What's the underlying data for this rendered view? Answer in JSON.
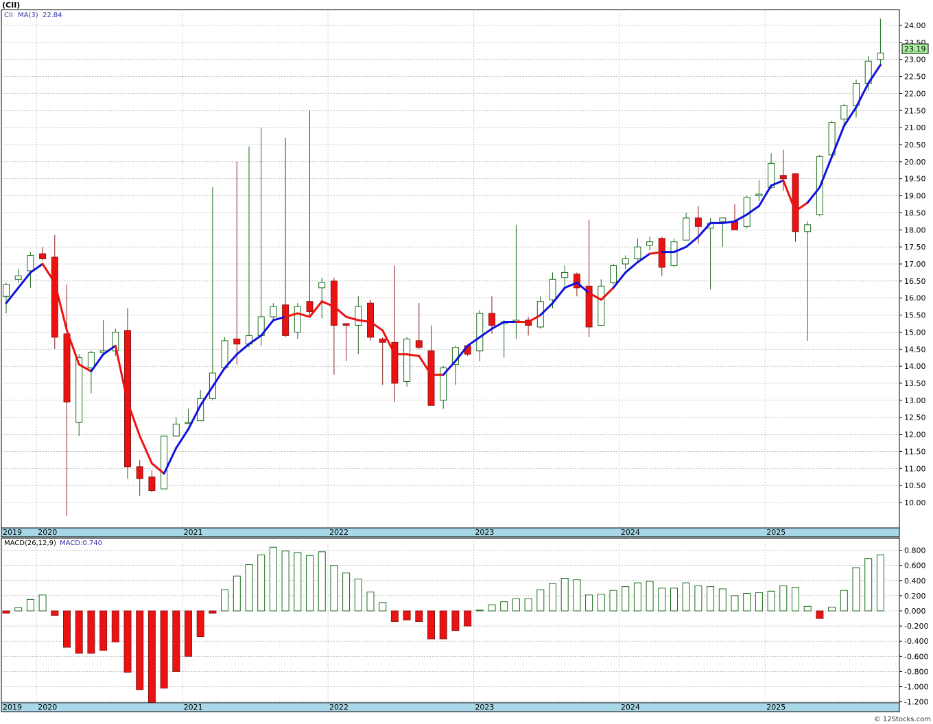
{
  "header": {
    "title": "(CII)",
    "price_legend_symbol": "CII",
    "ma_label": "MA(3)",
    "ma_value": "22.84",
    "macd_label": "MACD(26,12,9)",
    "macd_value_label": "MACD:0.740",
    "last_price": "23.19",
    "footer": "© 12Stocks.com"
  },
  "colors": {
    "up": "#1a6b1a",
    "down": "#ee1111",
    "ma_up": "#1111dd",
    "ma_down": "#ee1111",
    "axis_band": "#a8d8e8",
    "last_price_bg": "#a8f0a0",
    "grid": "#999999"
  },
  "chart_data": [
    {
      "type": "candlestick",
      "title": "(CII)",
      "interval": "monthly",
      "ylim": [
        9.5,
        24.3
      ],
      "yticks": [
        "10.00",
        "10.50",
        "11.00",
        "11.50",
        "12.00",
        "12.50",
        "13.00",
        "13.50",
        "14.00",
        "14.50",
        "15.00",
        "15.50",
        "16.00",
        "16.50",
        "17.00",
        "17.50",
        "18.00",
        "18.50",
        "19.00",
        "19.50",
        "20.00",
        "20.50",
        "21.00",
        "21.50",
        "22.00",
        "22.50",
        "23.00",
        "23.50",
        "24.00"
      ],
      "year_labels": [
        "2019",
        "2020",
        "2021",
        "2022",
        "2023",
        "2024",
        "2025"
      ],
      "year_start_index": [
        0,
        3,
        15,
        27,
        39,
        51,
        63
      ],
      "candles": [
        {
          "o": 16.05,
          "h": 16.45,
          "l": 15.55,
          "c": 16.4
        },
        {
          "o": 16.55,
          "h": 16.85,
          "l": 16.45,
          "c": 16.65
        },
        {
          "o": 16.8,
          "h": 17.35,
          "l": 16.3,
          "c": 17.25
        },
        {
          "o": 17.3,
          "h": 17.5,
          "l": 17.1,
          "c": 17.15
        },
        {
          "o": 17.2,
          "h": 17.85,
          "l": 14.5,
          "c": 14.85
        },
        {
          "o": 14.95,
          "h": 16.4,
          "l": 9.6,
          "c": 12.95
        },
        {
          "o": 12.35,
          "h": 14.35,
          "l": 11.95,
          "c": 14.25
        },
        {
          "o": 13.95,
          "h": 14.45,
          "l": 13.2,
          "c": 14.4
        },
        {
          "o": 14.4,
          "h": 15.35,
          "l": 14.4,
          "c": 14.45
        },
        {
          "o": 14.45,
          "h": 15.1,
          "l": 14.3,
          "c": 15.0
        },
        {
          "o": 15.05,
          "h": 15.7,
          "l": 10.7,
          "c": 11.05
        },
        {
          "o": 11.05,
          "h": 11.25,
          "l": 10.2,
          "c": 10.7
        },
        {
          "o": 10.75,
          "h": 10.95,
          "l": 10.3,
          "c": 10.35
        },
        {
          "o": 10.4,
          "h": 11.95,
          "l": 10.4,
          "c": 11.95
        },
        {
          "o": 11.95,
          "h": 12.5,
          "l": 11.95,
          "c": 12.3
        },
        {
          "o": 12.35,
          "h": 12.75,
          "l": 12.3,
          "c": 12.35
        },
        {
          "o": 12.4,
          "h": 13.3,
          "l": 12.4,
          "c": 13.05
        },
        {
          "o": 13.05,
          "h": 19.25,
          "l": 13.0,
          "c": 13.8
        },
        {
          "o": 13.95,
          "h": 14.85,
          "l": 13.95,
          "c": 14.75
        },
        {
          "o": 14.8,
          "h": 20.0,
          "l": 14.05,
          "c": 14.65
        },
        {
          "o": 14.65,
          "h": 20.45,
          "l": 14.55,
          "c": 14.9
        },
        {
          "o": 14.9,
          "h": 21.0,
          "l": 14.6,
          "c": 15.45
        },
        {
          "o": 15.45,
          "h": 15.85,
          "l": 15.3,
          "c": 15.75
        },
        {
          "o": 15.8,
          "h": 20.7,
          "l": 14.85,
          "c": 14.9
        },
        {
          "o": 15.0,
          "h": 15.85,
          "l": 14.8,
          "c": 15.75
        },
        {
          "o": 15.9,
          "h": 21.5,
          "l": 15.5,
          "c": 15.6
        },
        {
          "o": 16.3,
          "h": 16.6,
          "l": 15.4,
          "c": 16.45
        },
        {
          "o": 16.5,
          "h": 16.6,
          "l": 13.75,
          "c": 15.2
        },
        {
          "o": 15.25,
          "h": 15.25,
          "l": 14.15,
          "c": 15.2
        },
        {
          "o": 15.2,
          "h": 16.05,
          "l": 14.35,
          "c": 15.75
        },
        {
          "o": 15.85,
          "h": 15.95,
          "l": 14.75,
          "c": 14.85
        },
        {
          "o": 14.8,
          "h": 14.85,
          "l": 13.45,
          "c": 14.7
        },
        {
          "o": 14.7,
          "h": 16.95,
          "l": 12.95,
          "c": 13.5
        },
        {
          "o": 13.55,
          "h": 14.85,
          "l": 13.4,
          "c": 14.8
        },
        {
          "o": 14.75,
          "h": 15.85,
          "l": 14.5,
          "c": 14.55
        },
        {
          "o": 14.45,
          "h": 15.2,
          "l": 12.9,
          "c": 12.85
        },
        {
          "o": 13.0,
          "h": 14.0,
          "l": 12.75,
          "c": 13.95
        },
        {
          "o": 14.05,
          "h": 14.6,
          "l": 13.45,
          "c": 14.55
        },
        {
          "o": 14.6,
          "h": 14.6,
          "l": 14.3,
          "c": 14.35
        },
        {
          "o": 14.45,
          "h": 15.65,
          "l": 14.15,
          "c": 15.55
        },
        {
          "o": 15.55,
          "h": 16.05,
          "l": 14.95,
          "c": 15.2
        },
        {
          "o": 15.25,
          "h": 15.35,
          "l": 14.25,
          "c": 15.3
        },
        {
          "o": 15.3,
          "h": 18.15,
          "l": 14.8,
          "c": 15.35
        },
        {
          "o": 15.35,
          "h": 15.45,
          "l": 14.9,
          "c": 15.2
        },
        {
          "o": 15.15,
          "h": 16.05,
          "l": 15.1,
          "c": 15.9
        },
        {
          "o": 15.95,
          "h": 16.75,
          "l": 15.7,
          "c": 16.55
        },
        {
          "o": 16.6,
          "h": 16.95,
          "l": 16.35,
          "c": 16.75
        },
        {
          "o": 16.7,
          "h": 16.75,
          "l": 16.05,
          "c": 16.3
        },
        {
          "o": 16.35,
          "h": 18.3,
          "l": 14.85,
          "c": 15.15
        },
        {
          "o": 15.2,
          "h": 16.55,
          "l": 15.2,
          "c": 16.35
        },
        {
          "o": 16.45,
          "h": 17.0,
          "l": 16.4,
          "c": 16.95
        },
        {
          "o": 17.0,
          "h": 17.25,
          "l": 16.85,
          "c": 17.15
        },
        {
          "o": 17.15,
          "h": 17.75,
          "l": 17.1,
          "c": 17.5
        },
        {
          "o": 17.55,
          "h": 17.8,
          "l": 17.4,
          "c": 17.65
        },
        {
          "o": 17.75,
          "h": 17.8,
          "l": 16.65,
          "c": 16.9
        },
        {
          "o": 16.95,
          "h": 17.75,
          "l": 16.9,
          "c": 17.65
        },
        {
          "o": 17.7,
          "h": 18.5,
          "l": 17.7,
          "c": 18.35
        },
        {
          "o": 18.35,
          "h": 18.7,
          "l": 17.6,
          "c": 18.1
        },
        {
          "o": 18.05,
          "h": 18.35,
          "l": 16.25,
          "c": 18.2
        },
        {
          "o": 18.25,
          "h": 18.35,
          "l": 17.5,
          "c": 18.35
        },
        {
          "o": 18.25,
          "h": 18.75,
          "l": 18.0,
          "c": 18.0
        },
        {
          "o": 18.1,
          "h": 19.0,
          "l": 18.05,
          "c": 18.95
        },
        {
          "o": 19.0,
          "h": 19.45,
          "l": 18.85,
          "c": 19.05
        },
        {
          "o": 19.25,
          "h": 20.25,
          "l": 19.2,
          "c": 19.95
        },
        {
          "o": 19.6,
          "h": 20.35,
          "l": 19.15,
          "c": 19.5
        },
        {
          "o": 19.65,
          "h": 19.65,
          "l": 17.65,
          "c": 17.95
        },
        {
          "o": 17.95,
          "h": 18.25,
          "l": 14.75,
          "c": 18.15
        },
        {
          "o": 18.45,
          "h": 20.2,
          "l": 18.4,
          "c": 20.15
        },
        {
          "o": 20.2,
          "h": 21.2,
          "l": 20.1,
          "c": 21.15
        },
        {
          "o": 21.25,
          "h": 21.7,
          "l": 21.1,
          "c": 21.65
        },
        {
          "o": 21.65,
          "h": 22.4,
          "l": 21.3,
          "c": 22.3
        },
        {
          "o": 22.3,
          "h": 23.1,
          "l": 22.1,
          "c": 22.95
        },
        {
          "o": 23.0,
          "h": 24.2,
          "l": 22.85,
          "c": 23.19
        }
      ],
      "ma_series": {
        "name": "MA(3)",
        "values": [
          15.85,
          16.3,
          16.75,
          17.0,
          16.45,
          15.05,
          14.05,
          13.85,
          14.35,
          14.6,
          12.95,
          11.95,
          11.15,
          10.85,
          11.6,
          12.15,
          12.85,
          13.4,
          13.95,
          14.35,
          14.65,
          14.9,
          15.35,
          15.45,
          15.55,
          15.45,
          15.9,
          15.75,
          15.45,
          15.35,
          15.3,
          15.05,
          14.35,
          14.35,
          14.3,
          13.75,
          13.75,
          14.15,
          14.6,
          14.85,
          15.1,
          15.3,
          15.3,
          15.3,
          15.5,
          15.85,
          16.3,
          16.45,
          16.15,
          15.95,
          16.3,
          16.75,
          17.05,
          17.3,
          17.35,
          17.35,
          17.5,
          17.8,
          18.2,
          18.2,
          18.25,
          18.45,
          18.7,
          19.3,
          19.45,
          18.55,
          18.8,
          19.25,
          20.15,
          21.05,
          21.6,
          22.3,
          22.84
        ]
      },
      "ma_direction_up": [
        true,
        true,
        true,
        false,
        false,
        false,
        false,
        true,
        true,
        false,
        false,
        false,
        false,
        true,
        true,
        true,
        true,
        true,
        true,
        true,
        true,
        true,
        true,
        false,
        false,
        false,
        false,
        false,
        false,
        false,
        false,
        false,
        false,
        false,
        false,
        false,
        true,
        true,
        true,
        true,
        true,
        true,
        false,
        false,
        true,
        true,
        true,
        true,
        false,
        false,
        true,
        true,
        true,
        false,
        true,
        true,
        true,
        true,
        true,
        true,
        true,
        true,
        true,
        true,
        false,
        false,
        true,
        true,
        true,
        true,
        true,
        true,
        true
      ],
      "last_price": 23.19
    },
    {
      "type": "bar",
      "title": "MACD(26,12,9)",
      "ylim": [
        -1.25,
        0.88
      ],
      "yticks": [
        "0.800",
        "0.600",
        "0.400",
        "0.200",
        "0.000",
        "-0.200",
        "-0.400",
        "-0.600",
        "-0.800",
        "-1.000",
        "-1.200"
      ],
      "year_labels": [
        "2019",
        "2020",
        "2021",
        "2022",
        "2023",
        "2024",
        "2025"
      ],
      "values": [
        -0.03,
        0.04,
        0.15,
        0.21,
        -0.06,
        -0.48,
        -0.56,
        -0.56,
        -0.52,
        -0.41,
        -0.81,
        -1.04,
        -1.22,
        -1.02,
        -0.8,
        -0.6,
        -0.34,
        -0.03,
        0.28,
        0.46,
        0.61,
        0.74,
        0.84,
        0.79,
        0.77,
        0.73,
        0.78,
        0.6,
        0.5,
        0.42,
        0.25,
        0.11,
        -0.14,
        -0.12,
        -0.14,
        -0.37,
        -0.37,
        -0.26,
        -0.2,
        0.01,
        0.08,
        0.12,
        0.16,
        0.16,
        0.28,
        0.36,
        0.43,
        0.41,
        0.21,
        0.22,
        0.27,
        0.32,
        0.37,
        0.39,
        0.3,
        0.3,
        0.37,
        0.33,
        0.32,
        0.29,
        0.2,
        0.23,
        0.24,
        0.26,
        0.33,
        0.31,
        0.06,
        -0.1,
        0.05,
        0.27,
        0.57,
        0.69,
        0.74
      ]
    }
  ]
}
